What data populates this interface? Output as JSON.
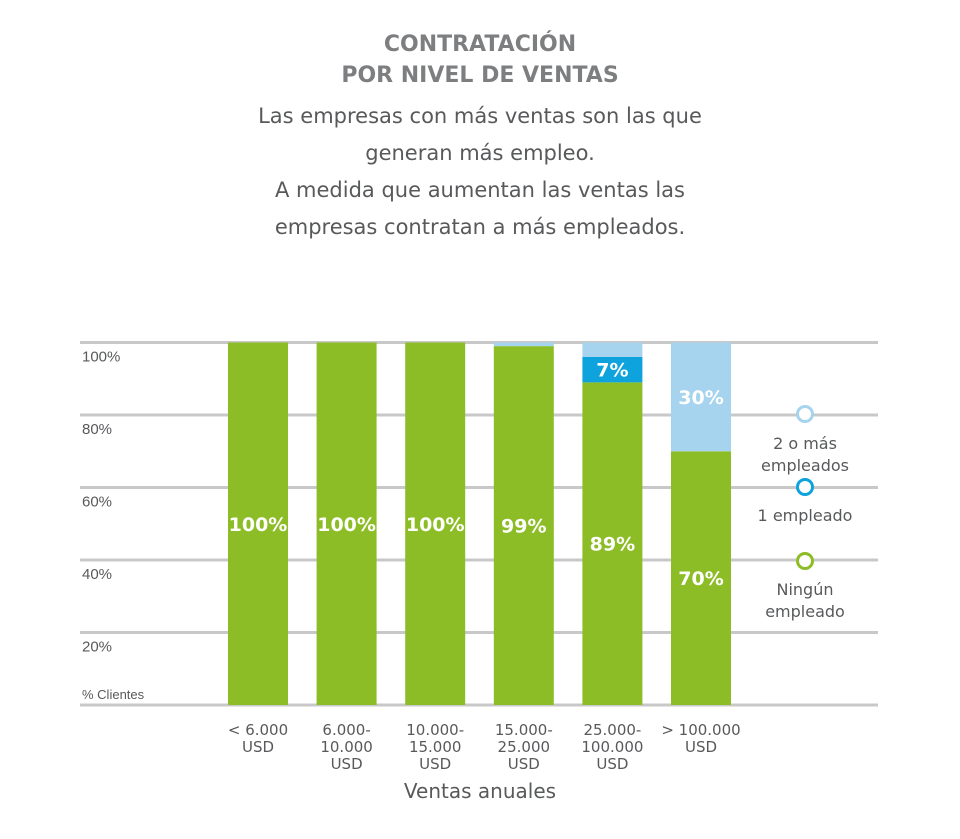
{
  "header": {
    "title_line1": "CONTRATACIÓN",
    "title_line2": "POR NIVEL DE VENTAS",
    "subtitle_lines": [
      "Las empresas con más ventas son las que",
      "generan más empleo.",
      "A medida que aumentan las ventas las",
      "empresas contratan a más empleados."
    ]
  },
  "chart_data": {
    "type": "bar",
    "stacked": true,
    "title": "CONTRATACIÓN POR NIVEL DE VENTAS",
    "xlabel": "Ventas anuales",
    "ylabel": "% Clientes",
    "ylim": [
      0,
      100
    ],
    "yticks": [
      "20%",
      "40%",
      "60%",
      "80%",
      "100%"
    ],
    "categories": [
      [
        "< 6.000",
        "USD"
      ],
      [
        "6.000-",
        "10.000",
        "USD"
      ],
      [
        "10.000-",
        "15.000",
        "USD"
      ],
      [
        "15.000-",
        "25.000",
        "USD"
      ],
      [
        "25.000-",
        "100.000",
        "USD"
      ],
      [
        "> 100.000",
        "USD"
      ]
    ],
    "series": [
      {
        "name": "Ningún empleado",
        "values": [
          100,
          100,
          100,
          99,
          89,
          70
        ],
        "labels": [
          "100%",
          "100%",
          "100%",
          "99%",
          "89%",
          "70%"
        ],
        "color": "#8dbd26"
      },
      {
        "name": "1 empleado",
        "values": [
          0,
          0,
          0,
          0,
          7,
          0
        ],
        "labels": [
          "",
          "",
          "",
          "",
          "7%",
          ""
        ],
        "color": "#0ea3dc"
      },
      {
        "name": "2 o más empleados",
        "values": [
          0,
          0,
          0,
          1,
          4,
          30
        ],
        "labels": [
          "",
          "",
          "",
          "",
          "",
          "30%"
        ],
        "color": "#a6d3ee"
      }
    ],
    "legend": {
      "placement": "right",
      "items": [
        {
          "lines": [
            "2 o más",
            "empleados"
          ],
          "color": "#a6d3ee"
        },
        {
          "lines": [
            "1 empleado"
          ],
          "color": "#0ea3dc"
        },
        {
          "lines": [
            "Ningún",
            "empleado"
          ],
          "color": "#8dbd26"
        }
      ]
    },
    "grid": true,
    "grid_color": "#c8c8c8"
  }
}
